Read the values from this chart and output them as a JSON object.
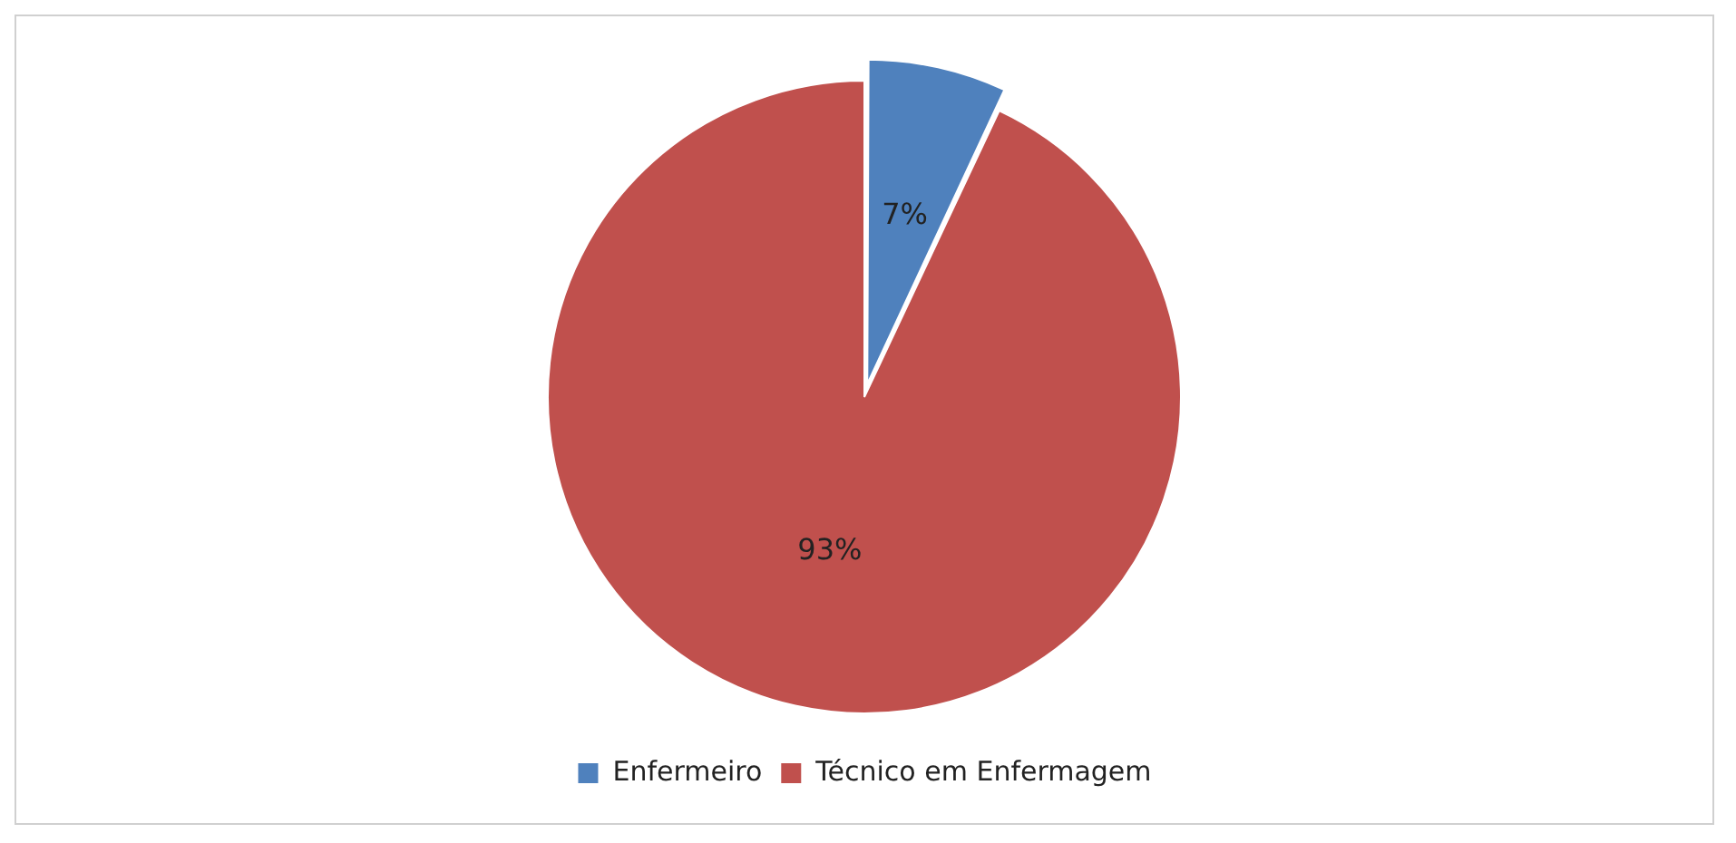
{
  "chart_data": {
    "type": "pie",
    "categories": [
      "Enfermeiro",
      "Técnico em Enfermagem"
    ],
    "values": [
      7,
      93
    ],
    "colors": [
      "#4f81bd",
      "#c0504d"
    ],
    "value_labels": [
      "7%",
      "93%"
    ],
    "legend": "bottom"
  }
}
